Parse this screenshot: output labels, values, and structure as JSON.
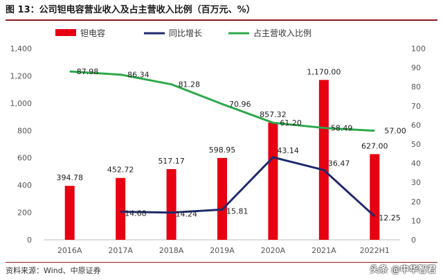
{
  "header": {
    "title": "图 13：公司钽电容营业收入及占主营收入比例（百万元、%）"
  },
  "footer": {
    "source": "资料来源：Wind、中原证券",
    "watermark": "头条 @中华智君"
  },
  "chart_data": {
    "type": "bar",
    "categories": [
      "2016A",
      "2017A",
      "2018A",
      "2019A",
      "2020A",
      "2021A",
      "2022H1"
    ],
    "series": [
      {
        "name": "钽电容",
        "type": "bar",
        "axis": "left",
        "color": "#e60012",
        "values": [
          394.78,
          452.72,
          517.17,
          598.95,
          857.32,
          1170.0,
          627.0
        ],
        "labels": [
          "394.78",
          "452.72",
          "517.17",
          "598.95",
          "857.32",
          "1,170.00",
          "627.00"
        ]
      },
      {
        "name": "同比增长",
        "type": "line",
        "axis": "right",
        "color": "#1f2a6b",
        "values": [
          null,
          14.68,
          14.24,
          15.81,
          43.14,
          36.47,
          12.25
        ],
        "labels": [
          "",
          "14.68",
          "14.24",
          "15.81",
          "43.14",
          "36.47",
          "12.25"
        ]
      },
      {
        "name": "占主营收入比例",
        "type": "line",
        "axis": "right",
        "color": "#2ca84a",
        "values": [
          87.98,
          86.34,
          81.28,
          70.96,
          61.2,
          58.49,
          57.0
        ],
        "labels": [
          "87.98",
          "86.34",
          "81.28",
          "70.96",
          "61.20",
          "58.49",
          "57.00"
        ]
      }
    ],
    "y_left": {
      "ylim": [
        0,
        1400
      ],
      "ticks": [
        0,
        200,
        400,
        600,
        800,
        1000,
        1200,
        1400
      ],
      "tick_labels": [
        "0",
        "200",
        "400",
        "600",
        "800",
        "1,000",
        "1,200",
        "1,400"
      ]
    },
    "y_right": {
      "ylim": [
        0,
        100
      ],
      "ticks": [
        0,
        10,
        20,
        30,
        40,
        50,
        60,
        70,
        80,
        90,
        100
      ],
      "tick_labels": [
        "0",
        "10",
        "20",
        "30",
        "40",
        "50",
        "60",
        "70",
        "80",
        "90",
        "100"
      ]
    },
    "grid": false,
    "legend": "top"
  }
}
